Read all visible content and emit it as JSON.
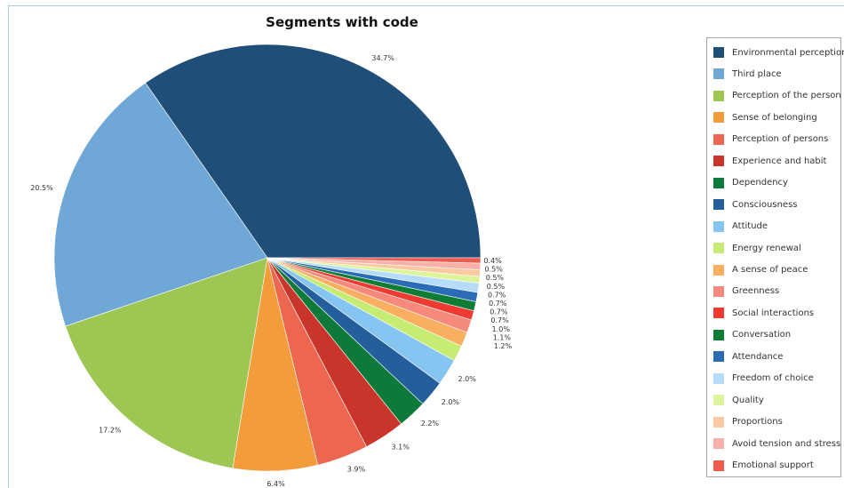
{
  "chart_data": {
    "type": "pie",
    "title": "Segments with code",
    "legend_position": "right",
    "slices": [
      {
        "label": "Environmental perception",
        "value": 34.7,
        "display": "34.7%",
        "color": "#1f4e79"
      },
      {
        "label": "Third place",
        "value": 20.5,
        "display": "20.5%",
        "color": "#6fa8d6"
      },
      {
        "label": "Perception of the person",
        "value": 17.2,
        "display": "17.2%",
        "color": "#9dc653"
      },
      {
        "label": "Sense of belonging",
        "value": 6.4,
        "display": "6.4%",
        "color": "#f39c3c"
      },
      {
        "label": "Perception of persons",
        "value": 3.9,
        "display": "3.9%",
        "color": "#ec6650"
      },
      {
        "label": "Experience and habit",
        "value": 3.1,
        "display": "3.1%",
        "color": "#c9352b"
      },
      {
        "label": "Dependency",
        "value": 2.2,
        "display": "2.2%",
        "color": "#0e7a3a"
      },
      {
        "label": "Consciousness",
        "value": 2.0,
        "display": "2.0%",
        "color": "#245f9c"
      },
      {
        "label": "Attitude",
        "value": 2.0,
        "display": "2.0%",
        "color": "#86c4f2"
      },
      {
        "label": "Energy renewal",
        "value": 1.2,
        "display": "1.2%",
        "color": "#c6ec74"
      },
      {
        "label": "A sense of peace",
        "value": 1.1,
        "display": "1.1%",
        "color": "#f8b060"
      },
      {
        "label": "Greenness",
        "value": 1.0,
        "display": "1.0%",
        "color": "#f58a7c"
      },
      {
        "label": "Social interactions",
        "value": 0.7,
        "display": "0.7%",
        "color": "#ee3a30"
      },
      {
        "label": "Conversation",
        "value": 0.7,
        "display": "0.7%",
        "color": "#0f7d35"
      },
      {
        "label": "Attendance",
        "value": 0.7,
        "display": "0.7%",
        "color": "#2a6cb5"
      },
      {
        "label": "Freedom of choice",
        "value": 0.7,
        "display": "0.7%",
        "color": "#b7dcf9"
      },
      {
        "label": "Quality",
        "value": 0.5,
        "display": "0.5%",
        "color": "#dcf59a"
      },
      {
        "label": "Proportions",
        "value": 0.5,
        "display": "0.5%",
        "color": "#fbc9a0"
      },
      {
        "label": "Avoid tension and stress",
        "value": 0.5,
        "display": "0.5%",
        "color": "#f8b0a8"
      },
      {
        "label": "Emotional support",
        "value": 0.4,
        "display": "0.4%",
        "color": "#f15a4e"
      }
    ]
  }
}
